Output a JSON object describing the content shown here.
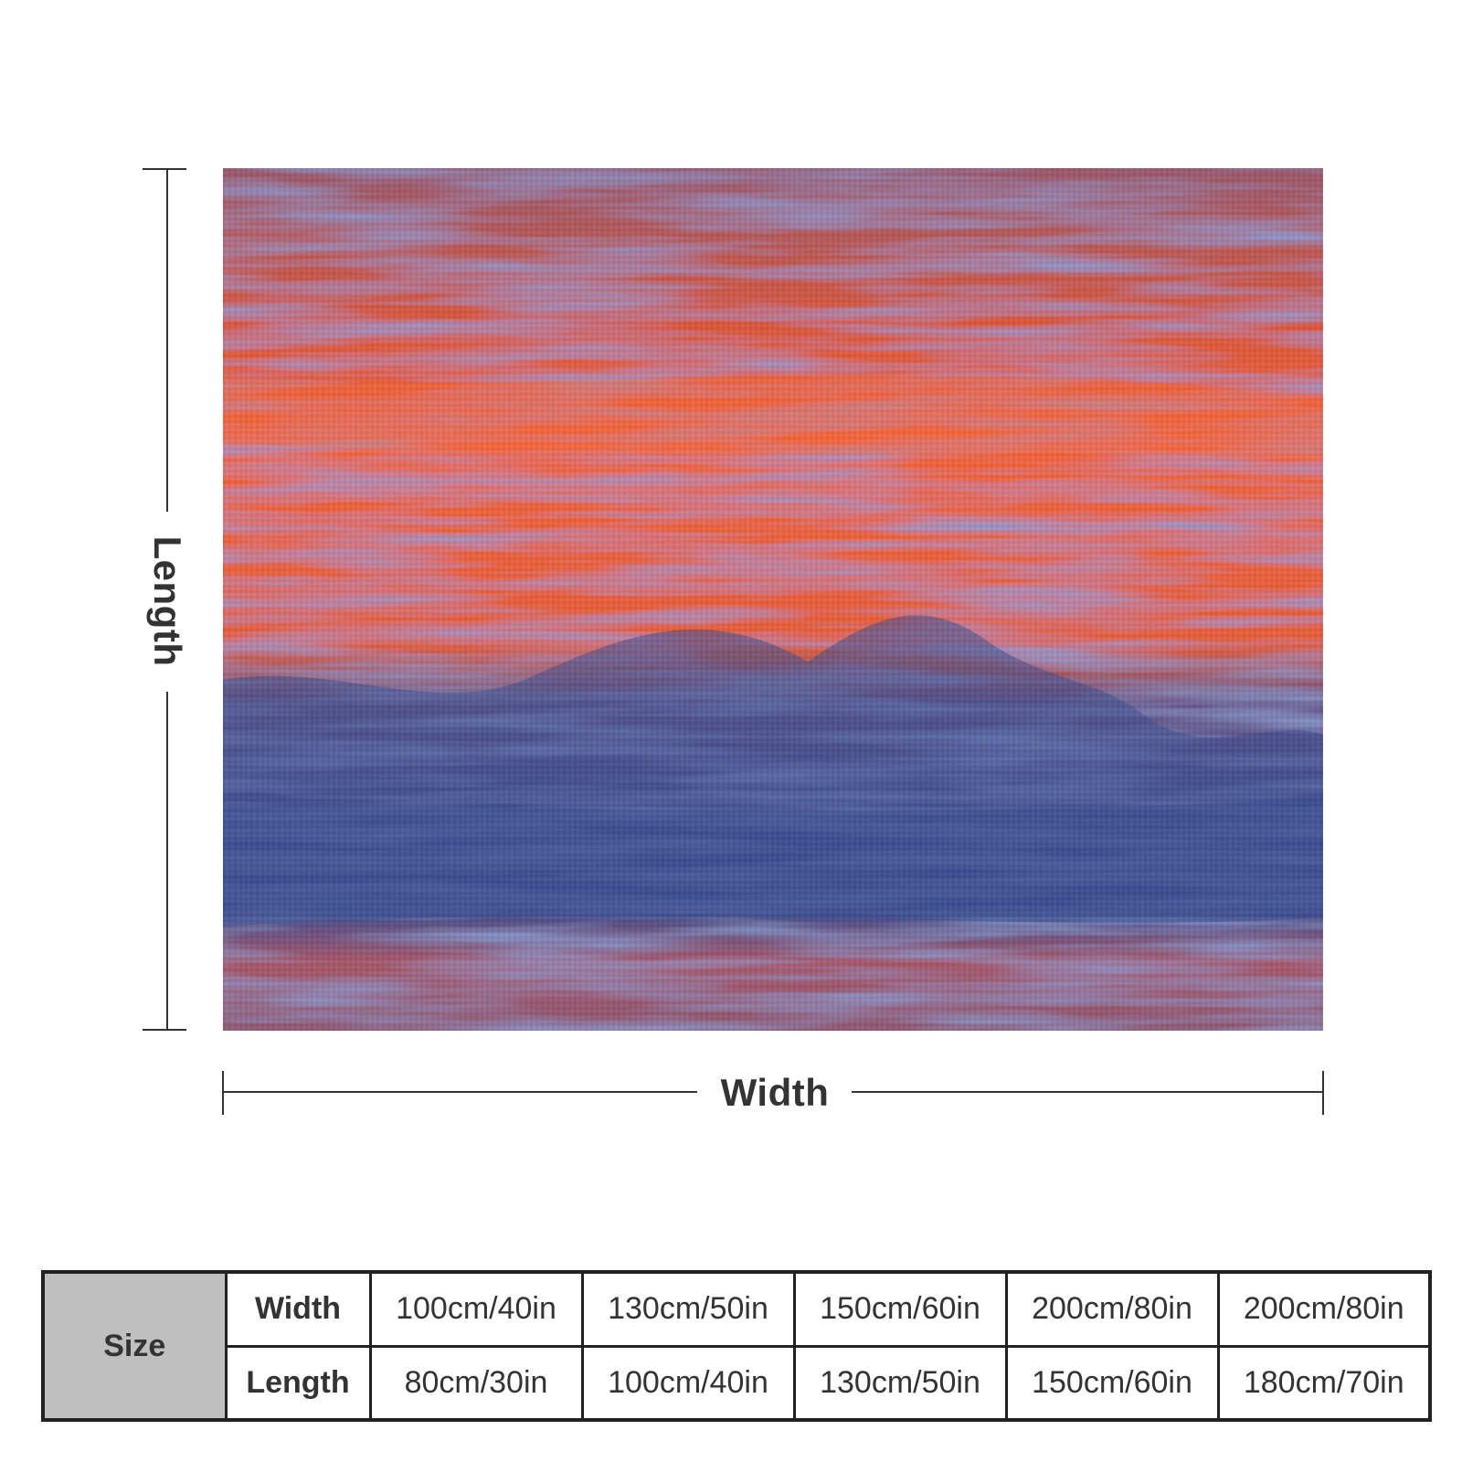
{
  "diagram": {
    "length_label": "Length",
    "width_label": "Width"
  },
  "artwork": {
    "description_colors": {
      "orange": "#f0603a",
      "blue": "#3c5294",
      "mauve": "#8c5f7a"
    }
  },
  "size_table": {
    "title": "Size",
    "rows": [
      {
        "label": "Width",
        "values": [
          "100cm/40in",
          "130cm/50in",
          "150cm/60in",
          "200cm/80in",
          "200cm/80in"
        ]
      },
      {
        "label": "Length",
        "values": [
          "80cm/30in",
          "100cm/40in",
          "130cm/50in",
          "150cm/60in",
          "180cm/70in"
        ]
      }
    ]
  }
}
